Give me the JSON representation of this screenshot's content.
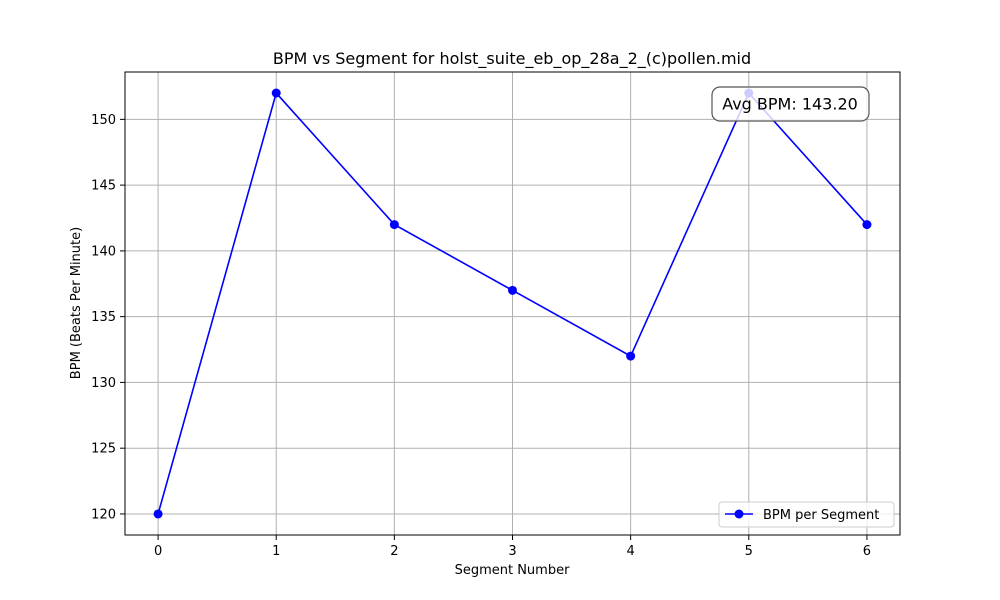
{
  "chart_data": {
    "type": "line",
    "title": "BPM vs Segment for holst_suite_eb_op_28a_2_(c)pollen.mid",
    "xlabel": "Segment Number",
    "ylabel": "BPM (Beats Per Minute)",
    "x": [
      0,
      1,
      2,
      3,
      4,
      5,
      6
    ],
    "series": [
      {
        "name": "BPM per Segment",
        "values": [
          120,
          152,
          142,
          137,
          132,
          152,
          142
        ]
      }
    ],
    "xticks": [
      0,
      1,
      2,
      3,
      4,
      5,
      6
    ],
    "yticks": [
      120,
      125,
      130,
      135,
      140,
      145,
      150
    ],
    "xlim": [
      -0.28,
      6.28
    ],
    "ylim": [
      118.4,
      153.6
    ],
    "grid": true,
    "legend_position": "lower-right",
    "line_color": "#0000ff",
    "annotation": "Avg BPM: 143.20"
  }
}
